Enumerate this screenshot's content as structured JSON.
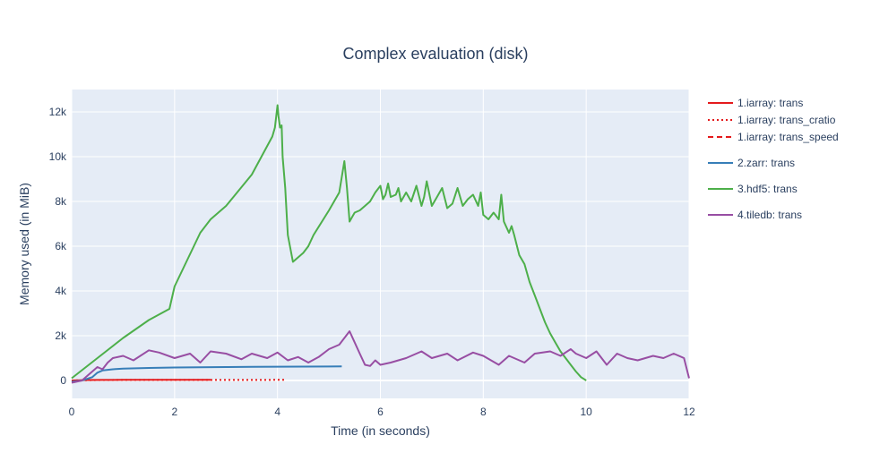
{
  "chart_data": {
    "type": "line",
    "title": "Complex evaluation (disk)",
    "xlabel": "Time (in seconds)",
    "ylabel": "Memory used (in MiB)",
    "xlim": [
      0,
      12
    ],
    "ylim": [
      -800,
      13000
    ],
    "xticks": [
      0,
      2,
      4,
      6,
      8,
      10,
      12
    ],
    "xtick_labels": [
      "0",
      "2",
      "4",
      "6",
      "8",
      "10",
      "12"
    ],
    "yticks": [
      0,
      2000,
      4000,
      6000,
      8000,
      10000,
      12000
    ],
    "ytick_labels": [
      "0",
      "2k",
      "4k",
      "6k",
      "8k",
      "10k",
      "12k"
    ],
    "grid": true,
    "legend_position": "right",
    "series": [
      {
        "name": "1.iarray: trans",
        "color": "#e41a1c",
        "dash": "solid",
        "x": [
          0,
          0.3,
          0.6,
          1.0,
          1.5,
          2.0,
          2.5,
          2.7
        ],
        "y": [
          0,
          20,
          25,
          28,
          30,
          32,
          33,
          33
        ]
      },
      {
        "name": "1.iarray: trans_cratio",
        "color": "#e41a1c",
        "dash": "dot",
        "x": [
          0,
          0.5,
          1.0,
          2.0,
          3.0,
          4.0,
          4.15
        ],
        "y": [
          0,
          20,
          22,
          25,
          26,
          27,
          27
        ]
      },
      {
        "name": "1.iarray: trans_speed",
        "color": "#e41a1c",
        "dash": "dash",
        "x": [],
        "y": []
      },
      {
        "name": "2.zarr: trans",
        "color": "#377eb8",
        "dash": "solid",
        "x": [
          0,
          0.2,
          0.4,
          0.5,
          0.6,
          0.8,
          1.0,
          1.5,
          2.0,
          2.5,
          3.0,
          3.5,
          4.0,
          4.5,
          5.0,
          5.25
        ],
        "y": [
          -60,
          0,
          150,
          350,
          450,
          500,
          530,
          560,
          580,
          590,
          600,
          610,
          615,
          620,
          625,
          630
        ]
      },
      {
        "name": "3.hdf5: trans",
        "color": "#4daf4a",
        "dash": "solid",
        "x": [
          0,
          0.5,
          1.0,
          1.5,
          1.9,
          2.0,
          2.5,
          2.7,
          3.0,
          3.5,
          3.9,
          3.95,
          4.0,
          4.02,
          4.05,
          4.08,
          4.1,
          4.15,
          4.2,
          4.3,
          4.5,
          4.6,
          4.7,
          5.0,
          5.2,
          5.3,
          5.35,
          5.4,
          5.45,
          5.5,
          5.6,
          5.7,
          5.8,
          5.9,
          6.0,
          6.05,
          6.1,
          6.15,
          6.2,
          6.3,
          6.35,
          6.4,
          6.5,
          6.6,
          6.7,
          6.8,
          6.85,
          6.9,
          7.0,
          7.1,
          7.2,
          7.3,
          7.4,
          7.5,
          7.6,
          7.7,
          7.8,
          7.9,
          7.95,
          8.0,
          8.1,
          8.2,
          8.3,
          8.35,
          8.4,
          8.5,
          8.55,
          8.6,
          8.7,
          8.8,
          8.9,
          9.0,
          9.1,
          9.2,
          9.3,
          9.4,
          9.5,
          9.6,
          9.7,
          9.8,
          9.9,
          10.0
        ],
        "y": [
          100,
          1000,
          1900,
          2700,
          3200,
          4200,
          6600,
          7200,
          7800,
          9200,
          10900,
          11300,
          12300,
          11800,
          11300,
          11400,
          10000,
          8600,
          6500,
          5300,
          5700,
          6000,
          6500,
          7600,
          8400,
          9800,
          8600,
          7100,
          7300,
          7500,
          7600,
          7800,
          8000,
          8400,
          8700,
          8100,
          8300,
          8800,
          8200,
          8300,
          8600,
          8000,
          8400,
          8000,
          8700,
          7800,
          8200,
          8900,
          7800,
          8200,
          8600,
          7700,
          7900,
          8600,
          7800,
          8100,
          8300,
          7800,
          8400,
          7400,
          7200,
          7500,
          7200,
          8300,
          7100,
          6600,
          6900,
          6500,
          5600,
          5200,
          4400,
          3800,
          3200,
          2600,
          2100,
          1700,
          1300,
          1000,
          700,
          400,
          150,
          0
        ]
      },
      {
        "name": "4.tiledb: trans",
        "color": "#984ea3",
        "dash": "solid",
        "x": [
          0,
          0.2,
          0.3,
          0.5,
          0.6,
          0.7,
          0.8,
          1.0,
          1.2,
          1.5,
          1.7,
          2.0,
          2.3,
          2.5,
          2.7,
          3.0,
          3.3,
          3.5,
          3.8,
          4.0,
          4.2,
          4.4,
          4.6,
          4.8,
          5.0,
          5.2,
          5.4,
          5.5,
          5.6,
          5.7,
          5.8,
          5.9,
          6.0,
          6.2,
          6.5,
          6.8,
          7.0,
          7.3,
          7.5,
          7.8,
          8.0,
          8.3,
          8.5,
          8.8,
          9.0,
          9.3,
          9.5,
          9.7,
          9.8,
          10.0,
          10.2,
          10.4,
          10.6,
          10.8,
          11.0,
          11.3,
          11.5,
          11.7,
          11.9,
          12.0
        ],
        "y": [
          -100,
          0,
          200,
          600,
          500,
          800,
          1000,
          1100,
          900,
          1350,
          1250,
          1000,
          1200,
          800,
          1300,
          1200,
          950,
          1200,
          1000,
          1250,
          900,
          1050,
          800,
          1050,
          1400,
          1600,
          2200,
          1700,
          1200,
          700,
          650,
          900,
          700,
          800,
          1000,
          1300,
          1000,
          1200,
          900,
          1250,
          1100,
          700,
          1100,
          800,
          1200,
          1300,
          1100,
          1400,
          1200,
          1000,
          1300,
          700,
          1200,
          1000,
          900,
          1100,
          1000,
          1200,
          1000,
          100
        ]
      }
    ]
  }
}
